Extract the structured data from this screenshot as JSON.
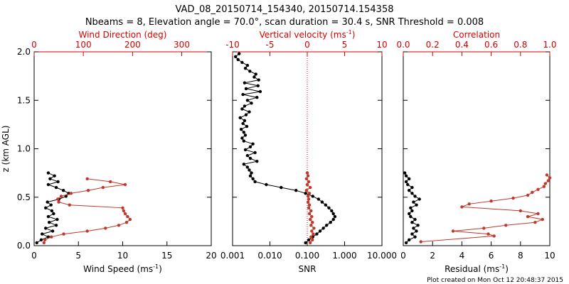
{
  "title_line1": "VAD_08_20150714_154340, 20150714.154358",
  "title_line2": "Nbeams = 8, Elevation angle = 70.0°, scan duration = 30.4 s, SNR Threshold = 0.008",
  "footer": "Plot created on Mon Oct 12 20:48:37 2015",
  "colors": {
    "black": "#000000",
    "red": "#c0392b",
    "red_axis": "#d40000"
  },
  "chart_data": [
    {
      "type": "line",
      "name": "wind-panel",
      "ylabel": "z (km AGL)",
      "ylim": [
        0.0,
        2.0
      ],
      "yticks": [
        0.0,
        0.5,
        1.0,
        1.5,
        2.0
      ],
      "ytick_labels": [
        "0.0",
        "0.5",
        "1.0",
        "1.5",
        "2.0"
      ],
      "bottom_axis": {
        "label": "Wind Speed (ms",
        "label_sup": "-1",
        "label_end": ")",
        "range": [
          0,
          20
        ],
        "ticks": [
          0,
          5,
          10,
          15,
          20
        ],
        "tick_labels": [
          "0",
          "5",
          "10",
          "15",
          "20"
        ]
      },
      "top_axis": {
        "label": "Wind Direction (deg)",
        "range": [
          0,
          360
        ],
        "ticks": [
          0,
          100,
          200,
          300
        ],
        "tick_labels": [
          "0",
          "100",
          "200",
          "300"
        ]
      },
      "series": [
        {
          "name": "Wind Speed",
          "axis": "bottom",
          "color": "black",
          "z": [
            0.03,
            0.06,
            0.09,
            0.12,
            0.15,
            0.18,
            0.21,
            0.24,
            0.27,
            0.3,
            0.33,
            0.36,
            0.39,
            0.42,
            0.45,
            0.48,
            0.51,
            0.54,
            0.57,
            0.6,
            0.63,
            0.66,
            0.69,
            0.72,
            0.75
          ],
          "values": [
            0.3,
            0.8,
            1.6,
            0.9,
            2.1,
            1.3,
            2.5,
            1.7,
            2.6,
            1.6,
            2.2,
            2.0,
            1.3,
            1.9,
            1.5,
            2.8,
            3.6,
            3.9,
            3.3,
            2.5,
            1.6,
            2.7,
            1.8,
            2.3,
            1.6
          ]
        },
        {
          "name": "Wind Direction",
          "axis": "top",
          "color": "red",
          "z": [
            0.03,
            0.06,
            0.09,
            0.12,
            0.15,
            0.18,
            0.21,
            0.24,
            0.27,
            0.3,
            0.33,
            0.36,
            0.39,
            0.42,
            0.45,
            0.48,
            0.51,
            0.54,
            0.57,
            0.6,
            0.63,
            0.66,
            0.69
          ],
          "values": [
            20,
            22,
            35,
            60,
            108,
            145,
            172,
            188,
            195,
            190,
            185,
            182,
            180,
            72,
            50,
            48,
            55,
            75,
            110,
            140,
            185,
            155,
            108
          ]
        }
      ]
    },
    {
      "type": "line",
      "name": "snr-panel",
      "bottom_axis": {
        "label": "SNR",
        "scale": "log",
        "range": [
          0.001,
          10
        ],
        "ticks": [
          0.001,
          0.01,
          0.1,
          1,
          10
        ],
        "tick_labels": [
          "0.001",
          "0.010",
          "0.100",
          "1.000",
          "10.000"
        ]
      },
      "top_axis": {
        "label": "Vertical velocity (ms",
        "label_sup": "-1",
        "label_end": ")",
        "range": [
          -10,
          10
        ],
        "ticks": [
          -10,
          -5,
          0,
          5,
          10
        ],
        "tick_labels": [
          "-10",
          "-5",
          "0",
          "5",
          "10"
        ]
      },
      "reference_line": {
        "axis": "top",
        "value": 0
      },
      "series": [
        {
          "name": "SNR",
          "axis": "bottom",
          "color": "black",
          "z": [
            0.03,
            0.06,
            0.09,
            0.12,
            0.15,
            0.18,
            0.21,
            0.24,
            0.27,
            0.3,
            0.33,
            0.36,
            0.39,
            0.42,
            0.45,
            0.48,
            0.51,
            0.54,
            0.57,
            0.6,
            0.63,
            0.66,
            0.69,
            0.72,
            0.75,
            0.78,
            0.81,
            0.84,
            0.87,
            0.9,
            0.93,
            0.96,
            0.99,
            1.02,
            1.05,
            1.08,
            1.11,
            1.14,
            1.17,
            1.2,
            1.23,
            1.26,
            1.29,
            1.32,
            1.35,
            1.38,
            1.41,
            1.44,
            1.47,
            1.5,
            1.53,
            1.56,
            1.59,
            1.62,
            1.65,
            1.68,
            1.71,
            1.74,
            1.77,
            1.8,
            1.83,
            1.86,
            1.89,
            1.92,
            1.95,
            1.98
          ],
          "values": [
            0.09,
            0.11,
            0.14,
            0.18,
            0.22,
            0.27,
            0.33,
            0.42,
            0.5,
            0.55,
            0.5,
            0.45,
            0.38,
            0.31,
            0.25,
            0.2,
            0.14,
            0.09,
            0.05,
            0.02,
            0.008,
            0.004,
            0.0035,
            0.003,
            0.0032,
            0.0028,
            0.0025,
            0.002,
            0.0045,
            0.003,
            0.0025,
            0.004,
            0.0022,
            0.003,
            0.0035,
            0.002,
            0.0018,
            0.0022,
            0.002,
            0.0017,
            0.0024,
            0.0019,
            0.0021,
            0.0016,
            0.0023,
            0.0028,
            0.0018,
            0.0021,
            0.0032,
            0.0025,
            0.0045,
            0.0019,
            0.0055,
            0.0023,
            0.0048,
            0.0021,
            0.005,
            0.0038,
            0.0042,
            0.0029,
            0.0022,
            0.0025,
            0.0018,
            0.0014,
            0.0012,
            0.0015
          ]
        },
        {
          "name": "Vertical velocity",
          "axis": "top",
          "color": "red",
          "z": [
            0.03,
            0.06,
            0.09,
            0.12,
            0.15,
            0.18,
            0.21,
            0.24,
            0.27,
            0.3,
            0.33,
            0.36,
            0.39,
            0.42,
            0.45,
            0.48,
            0.51,
            0.54,
            0.57,
            0.6,
            0.63,
            0.66,
            0.69,
            0.72,
            0.75
          ],
          "values": [
            0.4,
            0.7,
            0.5,
            0.8,
            0.6,
            0.9,
            0.5,
            0.7,
            0.4,
            0.6,
            0.3,
            0.5,
            0.2,
            0.3,
            0.1,
            0.2,
            0.1,
            0.3,
            -0.1,
            0.4,
            0.0,
            0.2,
            -0.1,
            0.1,
            0.0
          ]
        }
      ]
    },
    {
      "type": "line",
      "name": "residual-panel",
      "bottom_axis": {
        "label": "Residual (ms",
        "label_sup": "-1",
        "label_end": ")",
        "range": [
          0,
          10
        ],
        "ticks": [
          0,
          2,
          4,
          6,
          8,
          10
        ],
        "tick_labels": [
          "0",
          "2",
          "4",
          "6",
          "8",
          "10"
        ]
      },
      "top_axis": {
        "label": "Correlation",
        "range": [
          0.0,
          1.0
        ],
        "ticks": [
          0.0,
          0.2,
          0.4,
          0.6,
          0.8,
          1.0
        ],
        "tick_labels": [
          "0.0",
          "0.2",
          "0.4",
          "0.6",
          "0.8",
          "1.0"
        ]
      },
      "series": [
        {
          "name": "Residual",
          "axis": "bottom",
          "color": "black",
          "z": [
            0.03,
            0.06,
            0.09,
            0.12,
            0.15,
            0.18,
            0.21,
            0.24,
            0.27,
            0.3,
            0.33,
            0.36,
            0.39,
            0.42,
            0.45,
            0.48,
            0.51,
            0.54,
            0.57,
            0.6,
            0.63,
            0.66,
            0.69,
            0.72,
            0.75
          ],
          "values": [
            0.2,
            0.4,
            0.8,
            0.6,
            0.9,
            0.7,
            1.0,
            0.6,
            0.8,
            0.5,
            0.4,
            0.6,
            0.5,
            0.9,
            0.7,
            1.1,
            0.8,
            0.6,
            0.4,
            0.6,
            0.3,
            0.2,
            0.4,
            0.2,
            0.1
          ]
        },
        {
          "name": "Correlation",
          "axis": "top",
          "color": "red",
          "z": [
            0.04,
            0.1,
            0.12,
            0.15,
            0.18,
            0.21,
            0.24,
            0.27,
            0.3,
            0.33,
            0.36,
            0.4,
            0.43,
            0.46,
            0.49,
            0.52,
            0.55,
            0.58,
            0.61,
            0.64,
            0.67,
            0.7,
            0.73
          ],
          "values": [
            0.12,
            0.62,
            0.58,
            0.34,
            0.55,
            0.7,
            0.9,
            0.95,
            0.85,
            0.92,
            0.8,
            0.4,
            0.45,
            0.6,
            0.75,
            0.85,
            0.88,
            0.92,
            0.96,
            0.97,
            0.99,
            1.0,
            0.98
          ]
        }
      ]
    }
  ]
}
